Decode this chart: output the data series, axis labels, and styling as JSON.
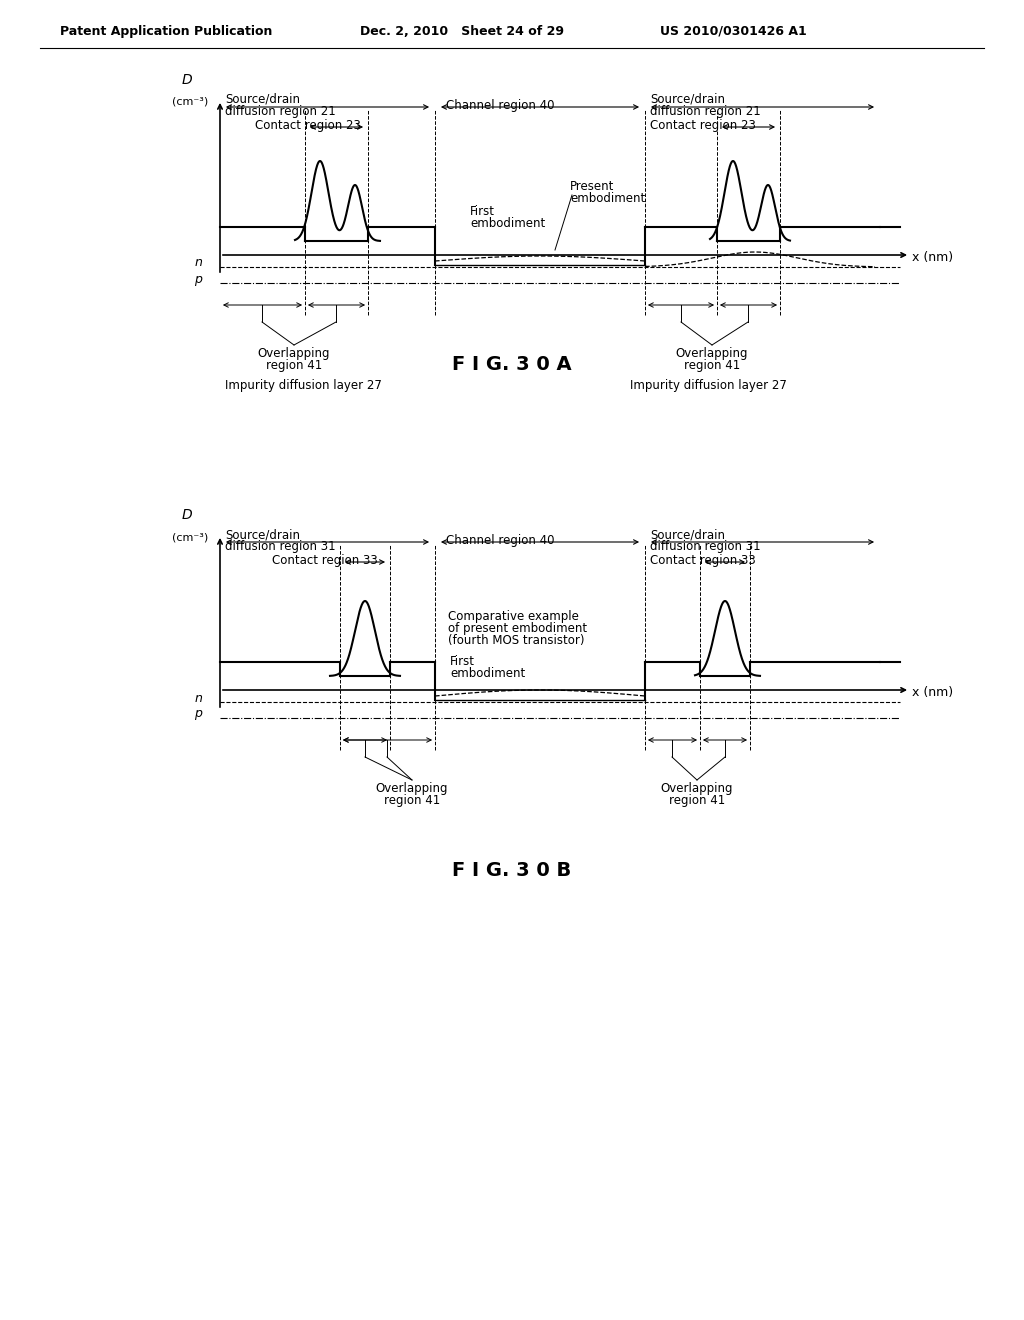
{
  "header_left": "Patent Application Publication",
  "header_mid": "Dec. 2, 2010   Sheet 24 of 29",
  "header_right": "US 2010/0301426 A1",
  "fig_a_label": "F I G. 3 0 A",
  "fig_b_label": "F I G. 3 0 B",
  "background_color": "#ffffff",
  "line_color": "#000000"
}
